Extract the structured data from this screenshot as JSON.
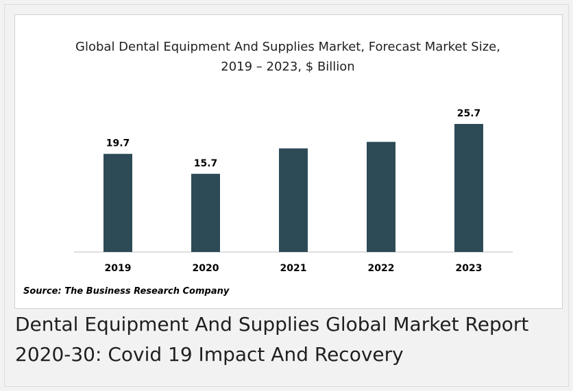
{
  "chart_data": {
    "type": "bar",
    "title": "Global Dental Equipment And Supplies Market, Forecast Market Size, 2019 – 2023, $ Billion",
    "categories": [
      "2019",
      "2020",
      "2021",
      "2022",
      "2023"
    ],
    "values": [
      19.7,
      15.7,
      20.8,
      22.1,
      25.7
    ],
    "data_labels": [
      "19.7",
      "15.7",
      "",
      "",
      "25.7"
    ],
    "xlabel": "",
    "ylabel": "",
    "ylim": [
      0,
      28
    ],
    "grid": false,
    "legend": "none",
    "bar_color": "#2d4a57"
  },
  "source": "Source: The Business Research Company",
  "caption": "Dental Equipment And Supplies Global Market Report 2020-30: Covid 19 Impact And Recovery"
}
